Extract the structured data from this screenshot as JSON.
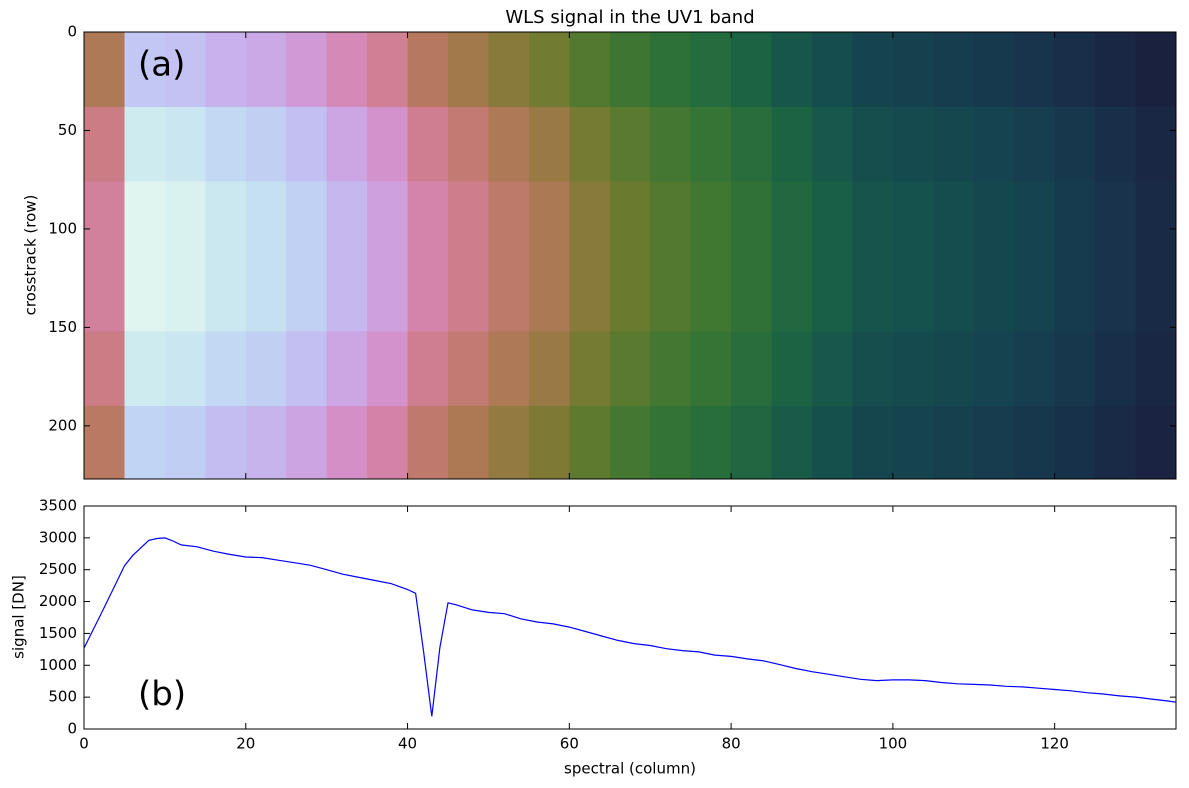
{
  "chart_data": [
    {
      "type": "heatmap",
      "title": "WLS signal in the UV1 band",
      "ylabel": "crosstrack (row)",
      "annotation": "(a)",
      "colormap": "cubehelix",
      "vlim": [
        0,
        3100
      ],
      "xlim": [
        0,
        135
      ],
      "ylim": [
        227,
        0
      ],
      "xticks": [
        0,
        20,
        40,
        60,
        80,
        100,
        120
      ],
      "yticks": [
        0,
        50,
        100,
        150,
        200
      ],
      "xbins": [
        0,
        5,
        10,
        15,
        20,
        25,
        30,
        35,
        40,
        45,
        50,
        55,
        60,
        65,
        70,
        75,
        80,
        85,
        90,
        95,
        100,
        105,
        110,
        115,
        120,
        125,
        130,
        135
      ],
      "ybins": [
        0,
        38,
        76,
        114,
        152,
        190,
        227
      ],
      "z": [
        [
          1615,
          2465,
          2423,
          2312,
          2253,
          2151,
          1998,
          1870,
          1658,
          1556,
          1445,
          1360,
          1233,
          1131,
          1046,
          978,
          901,
          808,
          731,
          663,
          646,
          621,
          595,
          561,
          519,
          468,
          417
        ],
        [
          1805,
          2755,
          2708,
          2584,
          2518,
          2404,
          2233,
          2090,
          1853,
          1739,
          1615,
          1520,
          1378,
          1264,
          1169,
          1093,
          1007,
          903,
          817,
          741,
          722,
          694,
          665,
          627,
          580,
          523,
          466
        ],
        [
          1900,
          2900,
          2850,
          2720,
          2650,
          2530,
          2350,
          2200,
          1950,
          1830,
          1700,
          1600,
          1450,
          1330,
          1230,
          1150,
          1060,
          950,
          860,
          780,
          760,
          730,
          700,
          660,
          610,
          550,
          490
        ],
        [
          1900,
          2900,
          2850,
          2720,
          2650,
          2530,
          2350,
          2200,
          1950,
          1830,
          1700,
          1600,
          1450,
          1330,
          1230,
          1150,
          1060,
          950,
          860,
          780,
          760,
          730,
          700,
          660,
          610,
          550,
          490
        ],
        [
          1805,
          2755,
          2708,
          2584,
          2518,
          2404,
          2233,
          2090,
          1853,
          1739,
          1615,
          1520,
          1378,
          1264,
          1169,
          1093,
          1007,
          903,
          817,
          741,
          722,
          694,
          665,
          627,
          580,
          523,
          466
        ],
        [
          1672,
          2552,
          2508,
          2394,
          2332,
          2226,
          2068,
          1936,
          1716,
          1610,
          1496,
          1408,
          1276,
          1170,
          1082,
          1012,
          933,
          836,
          757,
          686,
          669,
          642,
          616,
          581,
          537,
          484,
          431
        ]
      ]
    },
    {
      "type": "line",
      "xlabel": "spectral (column)",
      "ylabel": "signal [DN]",
      "annotation": "(b)",
      "xlim": [
        0,
        135
      ],
      "ylim": [
        0,
        3500
      ],
      "xticks": [
        0,
        20,
        40,
        60,
        80,
        100,
        120
      ],
      "yticks": [
        0,
        500,
        1000,
        1500,
        2000,
        2500,
        3000,
        3500
      ],
      "color": "#0000ff",
      "x": [
        0,
        2,
        4,
        5,
        6,
        7,
        8,
        9,
        10,
        11,
        12,
        14,
        16,
        18,
        20,
        22,
        24,
        26,
        28,
        30,
        32,
        34,
        36,
        38,
        40,
        41,
        42,
        43,
        44,
        45,
        46,
        48,
        50,
        52,
        54,
        56,
        58,
        60,
        62,
        64,
        66,
        68,
        70,
        72,
        74,
        76,
        78,
        80,
        82,
        84,
        86,
        88,
        90,
        92,
        94,
        96,
        98,
        100,
        102,
        104,
        106,
        108,
        110,
        112,
        114,
        116,
        118,
        120,
        122,
        124,
        126,
        128,
        130,
        132,
        134,
        135
      ],
      "values": [
        1270,
        1780,
        2300,
        2560,
        2720,
        2840,
        2960,
        2990,
        3000,
        2950,
        2890,
        2860,
        2790,
        2740,
        2700,
        2690,
        2650,
        2610,
        2570,
        2500,
        2430,
        2380,
        2330,
        2280,
        2190,
        2130,
        1200,
        200,
        1280,
        1980,
        1950,
        1870,
        1830,
        1810,
        1730,
        1680,
        1650,
        1600,
        1530,
        1460,
        1390,
        1340,
        1310,
        1260,
        1230,
        1210,
        1160,
        1140,
        1100,
        1070,
        1010,
        950,
        900,
        860,
        820,
        780,
        760,
        770,
        770,
        760,
        730,
        710,
        700,
        690,
        670,
        660,
        640,
        620,
        600,
        570,
        550,
        520,
        500,
        470,
        440,
        420
      ]
    }
  ]
}
